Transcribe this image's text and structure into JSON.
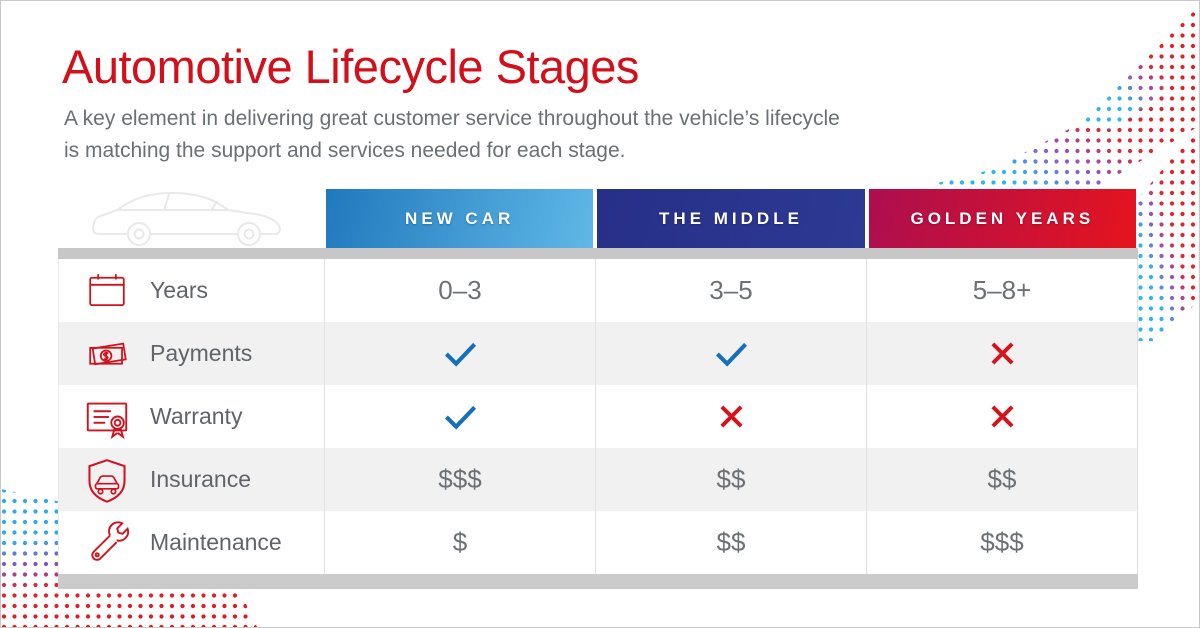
{
  "page": {
    "title": "Automotive Lifecycle Stages",
    "subtitle_line1": "A key element in delivering great customer service throughout the vehicle’s lifecycle",
    "subtitle_line2": "is matching the support and services needed for each stage."
  },
  "table": {
    "columns": [
      {
        "label": "NEW CAR",
        "gradient_from": "#2079bd",
        "gradient_to": "#5fb8e6"
      },
      {
        "label": "THE MIDDLE",
        "gradient_from": "#272f87",
        "gradient_to": "#2b3a94"
      },
      {
        "label": "GOLDEN YEARS",
        "gradient_from": "#ac0e50",
        "gradient_to": "#e5141e"
      }
    ],
    "rows": [
      {
        "label": "Years",
        "icon": "calendar-icon",
        "values": [
          {
            "type": "text",
            "text": "0–3"
          },
          {
            "type": "text",
            "text": "3–5"
          },
          {
            "type": "text",
            "text": "5–8+"
          }
        ]
      },
      {
        "label": "Payments",
        "icon": "payments-icon",
        "values": [
          {
            "type": "check"
          },
          {
            "type": "check"
          },
          {
            "type": "cross"
          }
        ]
      },
      {
        "label": "Warranty",
        "icon": "warranty-icon",
        "values": [
          {
            "type": "check"
          },
          {
            "type": "cross"
          },
          {
            "type": "cross"
          }
        ]
      },
      {
        "label": "Insurance",
        "icon": "insurance-icon",
        "values": [
          {
            "type": "text",
            "text": "$$$"
          },
          {
            "type": "text",
            "text": "$$"
          },
          {
            "type": "text",
            "text": "$$"
          }
        ]
      },
      {
        "label": "Maintenance",
        "icon": "maintenance-icon",
        "values": [
          {
            "type": "text",
            "text": "$"
          },
          {
            "type": "text",
            "text": "$$"
          },
          {
            "type": "text",
            "text": "$$$"
          }
        ]
      }
    ]
  },
  "colors": {
    "title": "#d40f1c",
    "subtitle": "#6b7075",
    "check": "#1470ba",
    "cross": "#d6121d",
    "icon_red": "#d0121f",
    "row_alt": "#f1f1f2",
    "shadow_strip": "#c8c8c8",
    "car_outline": "#e9e9e9"
  },
  "decorations": {
    "car_icon": "sedan-outline-icon",
    "dots_top_right_colors": [
      "#29b6f2",
      "#9b4fc0",
      "#e5161f"
    ],
    "dots_bottom_left_colors": [
      "#2ea9ee",
      "#8a4fbe",
      "#e5161f"
    ]
  }
}
